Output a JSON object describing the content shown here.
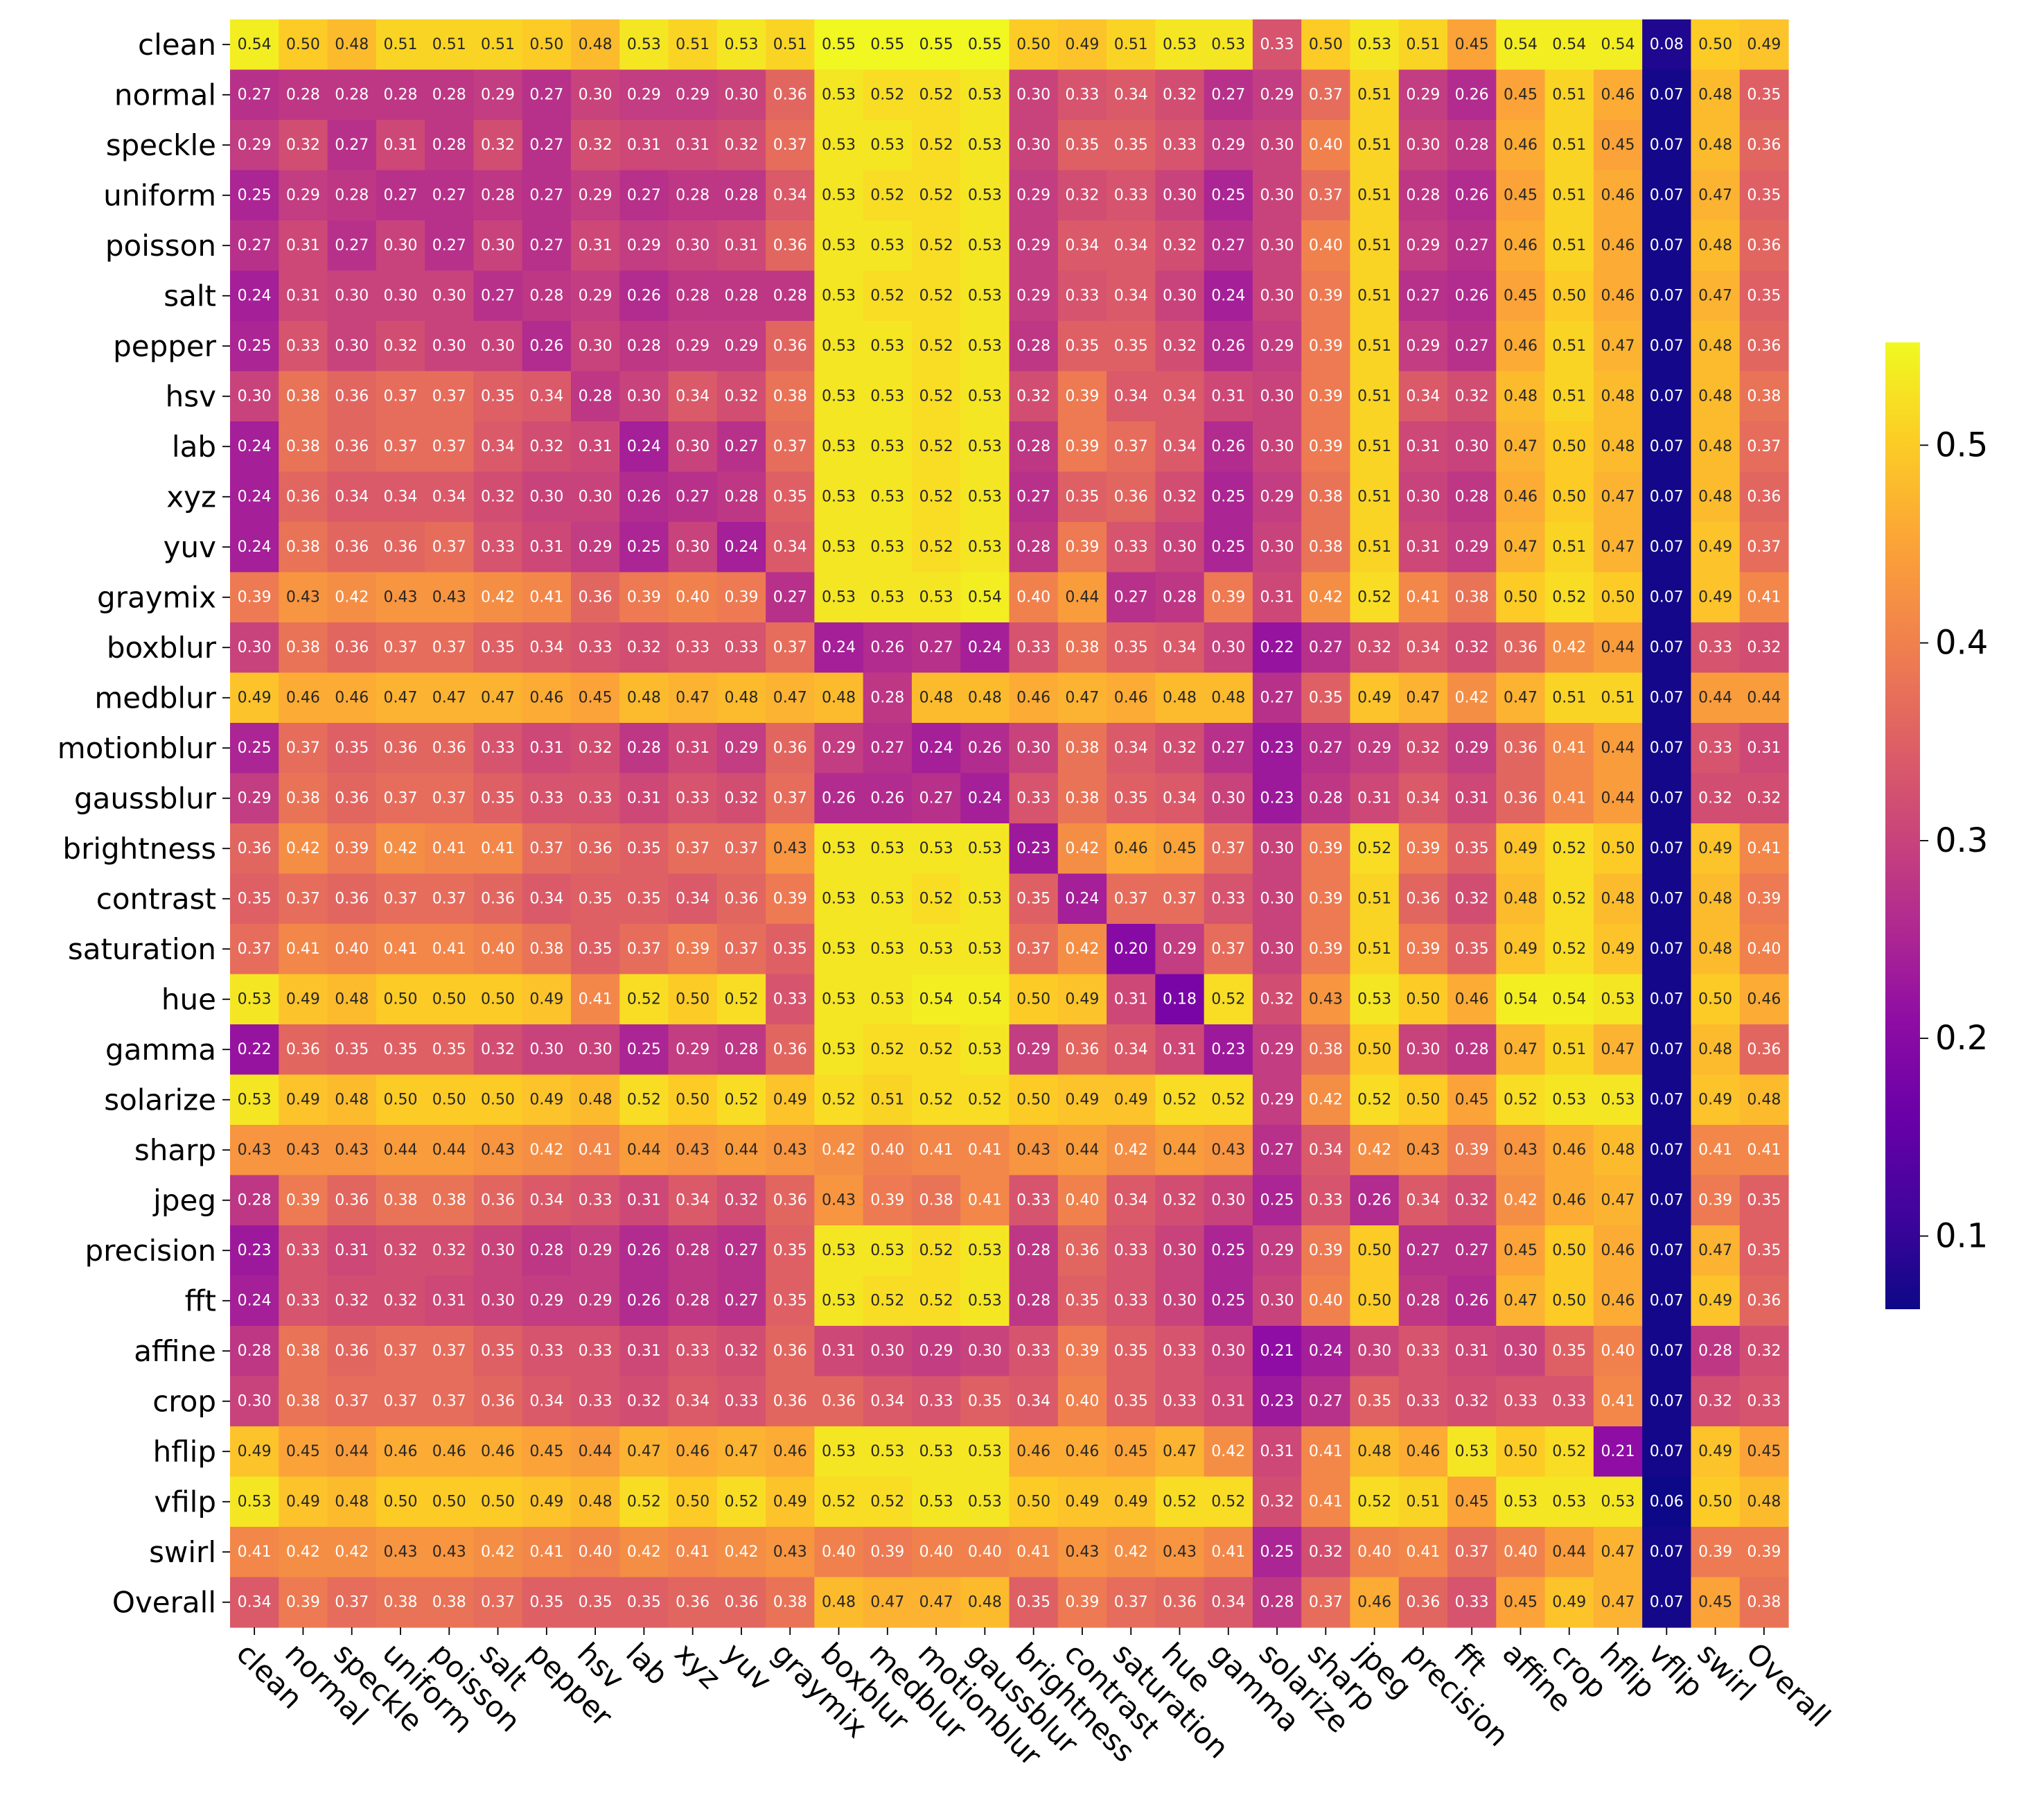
{
  "chart_data": {
    "type": "heatmap",
    "title": "",
    "xlabel": "",
    "ylabel": "",
    "colormap": "plasma",
    "color_range": [
      0.063,
      0.552
    ],
    "colorbar_ticks": [
      "0.1",
      "0.2",
      "0.3",
      "0.4",
      "0.5"
    ],
    "colorbar_position": "right",
    "annotated": true,
    "row_labels": [
      "clean",
      "normal",
      "speckle",
      "uniform",
      "poisson",
      "salt",
      "pepper",
      "hsv",
      "lab",
      "xyz",
      "yuv",
      "graymix",
      "boxblur",
      "medblur",
      "motionblur",
      "gaussblur",
      "brightness",
      "contrast",
      "saturation",
      "hue",
      "gamma",
      "solarize",
      "sharp",
      "jpeg",
      "precision",
      "fft",
      "affine",
      "crop",
      "hflip",
      "vfilp",
      "swirl",
      "Overall"
    ],
    "col_labels": [
      "clean",
      "normal",
      "speckle",
      "uniform",
      "poisson",
      "salt",
      "pepper",
      "hsv",
      "lab",
      "xyz",
      "yuv",
      "graymix",
      "boxblur",
      "medblur",
      "motionblur",
      "gaussblur",
      "brightness",
      "contrast",
      "saturation",
      "hue",
      "gamma",
      "solarize",
      "sharp",
      "jpeg",
      "precision",
      "fft",
      "affine",
      "crop",
      "hflip",
      "vflip",
      "swirl",
      "Overall"
    ],
    "values": [
      [
        0.54,
        0.5,
        0.48,
        0.51,
        0.51,
        0.51,
        0.5,
        0.48,
        0.53,
        0.51,
        0.53,
        0.51,
        0.55,
        0.55,
        0.55,
        0.55,
        0.5,
        0.49,
        0.51,
        0.53,
        0.53,
        0.33,
        0.5,
        0.53,
        0.51,
        0.45,
        0.54,
        0.54,
        0.54,
        0.08,
        0.5,
        0.49
      ],
      [
        0.27,
        0.28,
        0.28,
        0.28,
        0.28,
        0.29,
        0.27,
        0.3,
        0.29,
        0.29,
        0.3,
        0.36,
        0.53,
        0.52,
        0.52,
        0.53,
        0.3,
        0.33,
        0.34,
        0.32,
        0.27,
        0.29,
        0.37,
        0.51,
        0.29,
        0.26,
        0.45,
        0.51,
        0.46,
        0.07,
        0.48,
        0.35
      ],
      [
        0.29,
        0.32,
        0.27,
        0.31,
        0.28,
        0.32,
        0.27,
        0.32,
        0.31,
        0.31,
        0.32,
        0.37,
        0.53,
        0.53,
        0.52,
        0.53,
        0.3,
        0.35,
        0.35,
        0.33,
        0.29,
        0.3,
        0.4,
        0.51,
        0.3,
        0.28,
        0.46,
        0.51,
        0.45,
        0.07,
        0.48,
        0.36
      ],
      [
        0.25,
        0.29,
        0.28,
        0.27,
        0.27,
        0.28,
        0.27,
        0.29,
        0.27,
        0.28,
        0.28,
        0.34,
        0.53,
        0.52,
        0.52,
        0.53,
        0.29,
        0.32,
        0.33,
        0.3,
        0.25,
        0.3,
        0.37,
        0.51,
        0.28,
        0.26,
        0.45,
        0.51,
        0.46,
        0.07,
        0.47,
        0.35
      ],
      [
        0.27,
        0.31,
        0.27,
        0.3,
        0.27,
        0.3,
        0.27,
        0.31,
        0.29,
        0.3,
        0.31,
        0.36,
        0.53,
        0.53,
        0.52,
        0.53,
        0.29,
        0.34,
        0.34,
        0.32,
        0.27,
        0.3,
        0.4,
        0.51,
        0.29,
        0.27,
        0.46,
        0.51,
        0.46,
        0.07,
        0.48,
        0.36
      ],
      [
        0.24,
        0.31,
        0.3,
        0.3,
        0.3,
        0.27,
        0.28,
        0.29,
        0.26,
        0.28,
        0.28,
        0.28,
        0.53,
        0.52,
        0.52,
        0.53,
        0.29,
        0.33,
        0.34,
        0.3,
        0.24,
        0.3,
        0.39,
        0.51,
        0.27,
        0.26,
        0.45,
        0.5,
        0.46,
        0.07,
        0.47,
        0.35
      ],
      [
        0.25,
        0.33,
        0.3,
        0.32,
        0.3,
        0.3,
        0.26,
        0.3,
        0.28,
        0.29,
        0.29,
        0.36,
        0.53,
        0.53,
        0.52,
        0.53,
        0.28,
        0.35,
        0.35,
        0.32,
        0.26,
        0.29,
        0.39,
        0.51,
        0.29,
        0.27,
        0.46,
        0.51,
        0.47,
        0.07,
        0.48,
        0.36
      ],
      [
        0.3,
        0.38,
        0.36,
        0.37,
        0.37,
        0.35,
        0.34,
        0.28,
        0.3,
        0.34,
        0.32,
        0.38,
        0.53,
        0.53,
        0.52,
        0.53,
        0.32,
        0.39,
        0.34,
        0.34,
        0.31,
        0.3,
        0.39,
        0.51,
        0.34,
        0.32,
        0.48,
        0.51,
        0.48,
        0.07,
        0.48,
        0.38
      ],
      [
        0.24,
        0.38,
        0.36,
        0.37,
        0.37,
        0.34,
        0.32,
        0.31,
        0.24,
        0.3,
        0.27,
        0.37,
        0.53,
        0.53,
        0.52,
        0.53,
        0.28,
        0.39,
        0.37,
        0.34,
        0.26,
        0.3,
        0.39,
        0.51,
        0.31,
        0.3,
        0.47,
        0.5,
        0.48,
        0.07,
        0.48,
        0.37
      ],
      [
        0.24,
        0.36,
        0.34,
        0.34,
        0.34,
        0.32,
        0.3,
        0.3,
        0.26,
        0.27,
        0.28,
        0.35,
        0.53,
        0.53,
        0.52,
        0.53,
        0.27,
        0.35,
        0.36,
        0.32,
        0.25,
        0.29,
        0.38,
        0.51,
        0.3,
        0.28,
        0.46,
        0.5,
        0.47,
        0.07,
        0.48,
        0.36
      ],
      [
        0.24,
        0.38,
        0.36,
        0.36,
        0.37,
        0.33,
        0.31,
        0.29,
        0.25,
        0.3,
        0.24,
        0.34,
        0.53,
        0.53,
        0.52,
        0.53,
        0.28,
        0.39,
        0.33,
        0.3,
        0.25,
        0.3,
        0.38,
        0.51,
        0.31,
        0.29,
        0.47,
        0.51,
        0.47,
        0.07,
        0.49,
        0.37
      ],
      [
        0.39,
        0.43,
        0.42,
        0.43,
        0.43,
        0.42,
        0.41,
        0.36,
        0.39,
        0.4,
        0.39,
        0.27,
        0.53,
        0.53,
        0.53,
        0.54,
        0.4,
        0.44,
        0.27,
        0.28,
        0.39,
        0.31,
        0.42,
        0.52,
        0.41,
        0.38,
        0.5,
        0.52,
        0.5,
        0.07,
        0.49,
        0.41
      ],
      [
        0.3,
        0.38,
        0.36,
        0.37,
        0.37,
        0.35,
        0.34,
        0.33,
        0.32,
        0.33,
        0.33,
        0.37,
        0.24,
        0.26,
        0.27,
        0.24,
        0.33,
        0.38,
        0.35,
        0.34,
        0.3,
        0.22,
        0.27,
        0.32,
        0.34,
        0.32,
        0.36,
        0.42,
        0.44,
        0.07,
        0.33,
        0.32
      ],
      [
        0.49,
        0.46,
        0.46,
        0.47,
        0.47,
        0.47,
        0.46,
        0.45,
        0.48,
        0.47,
        0.48,
        0.47,
        0.48,
        0.28,
        0.48,
        0.48,
        0.46,
        0.47,
        0.46,
        0.48,
        0.48,
        0.27,
        0.35,
        0.49,
        0.47,
        0.42,
        0.47,
        0.51,
        0.51,
        0.07,
        0.44,
        0.44
      ],
      [
        0.25,
        0.37,
        0.35,
        0.36,
        0.36,
        0.33,
        0.31,
        0.32,
        0.28,
        0.31,
        0.29,
        0.36,
        0.29,
        0.27,
        0.24,
        0.26,
        0.3,
        0.38,
        0.34,
        0.32,
        0.27,
        0.23,
        0.27,
        0.29,
        0.32,
        0.29,
        0.36,
        0.41,
        0.44,
        0.07,
        0.33,
        0.31
      ],
      [
        0.29,
        0.38,
        0.36,
        0.37,
        0.37,
        0.35,
        0.33,
        0.33,
        0.31,
        0.33,
        0.32,
        0.37,
        0.26,
        0.26,
        0.27,
        0.24,
        0.33,
        0.38,
        0.35,
        0.34,
        0.3,
        0.23,
        0.28,
        0.31,
        0.34,
        0.31,
        0.36,
        0.41,
        0.44,
        0.07,
        0.32,
        0.32
      ],
      [
        0.36,
        0.42,
        0.39,
        0.42,
        0.41,
        0.41,
        0.37,
        0.36,
        0.35,
        0.37,
        0.37,
        0.43,
        0.53,
        0.53,
        0.53,
        0.53,
        0.23,
        0.42,
        0.46,
        0.45,
        0.37,
        0.3,
        0.39,
        0.52,
        0.39,
        0.35,
        0.49,
        0.52,
        0.5,
        0.07,
        0.49,
        0.41
      ],
      [
        0.35,
        0.37,
        0.36,
        0.37,
        0.37,
        0.36,
        0.34,
        0.35,
        0.35,
        0.34,
        0.36,
        0.39,
        0.53,
        0.53,
        0.52,
        0.53,
        0.35,
        0.24,
        0.37,
        0.37,
        0.33,
        0.3,
        0.39,
        0.51,
        0.36,
        0.32,
        0.48,
        0.52,
        0.48,
        0.07,
        0.48,
        0.39
      ],
      [
        0.37,
        0.41,
        0.4,
        0.41,
        0.41,
        0.4,
        0.38,
        0.35,
        0.37,
        0.39,
        0.37,
        0.35,
        0.53,
        0.53,
        0.53,
        0.53,
        0.37,
        0.42,
        0.2,
        0.29,
        0.37,
        0.3,
        0.39,
        0.51,
        0.39,
        0.35,
        0.49,
        0.52,
        0.49,
        0.07,
        0.48,
        0.4
      ],
      [
        0.53,
        0.49,
        0.48,
        0.5,
        0.5,
        0.5,
        0.49,
        0.41,
        0.52,
        0.5,
        0.52,
        0.33,
        0.53,
        0.53,
        0.54,
        0.54,
        0.5,
        0.49,
        0.31,
        0.18,
        0.52,
        0.32,
        0.43,
        0.53,
        0.5,
        0.46,
        0.54,
        0.54,
        0.53,
        0.07,
        0.5,
        0.46
      ],
      [
        0.22,
        0.36,
        0.35,
        0.35,
        0.35,
        0.32,
        0.3,
        0.3,
        0.25,
        0.29,
        0.28,
        0.36,
        0.53,
        0.52,
        0.52,
        0.53,
        0.29,
        0.36,
        0.34,
        0.31,
        0.23,
        0.29,
        0.38,
        0.5,
        0.3,
        0.28,
        0.47,
        0.51,
        0.47,
        0.07,
        0.48,
        0.36
      ],
      [
        0.53,
        0.49,
        0.48,
        0.5,
        0.5,
        0.5,
        0.49,
        0.48,
        0.52,
        0.5,
        0.52,
        0.49,
        0.52,
        0.51,
        0.52,
        0.52,
        0.5,
        0.49,
        0.49,
        0.52,
        0.52,
        0.29,
        0.42,
        0.52,
        0.5,
        0.45,
        0.52,
        0.53,
        0.53,
        0.07,
        0.49,
        0.48
      ],
      [
        0.43,
        0.43,
        0.43,
        0.44,
        0.44,
        0.43,
        0.42,
        0.41,
        0.44,
        0.43,
        0.44,
        0.43,
        0.42,
        0.4,
        0.41,
        0.41,
        0.43,
        0.44,
        0.42,
        0.44,
        0.43,
        0.27,
        0.34,
        0.42,
        0.43,
        0.39,
        0.43,
        0.46,
        0.48,
        0.07,
        0.41,
        0.41
      ],
      [
        0.28,
        0.39,
        0.36,
        0.38,
        0.38,
        0.36,
        0.34,
        0.33,
        0.31,
        0.34,
        0.32,
        0.36,
        0.43,
        0.39,
        0.38,
        0.41,
        0.33,
        0.4,
        0.34,
        0.32,
        0.3,
        0.25,
        0.33,
        0.26,
        0.34,
        0.32,
        0.42,
        0.46,
        0.47,
        0.07,
        0.39,
        0.35
      ],
      [
        0.23,
        0.33,
        0.31,
        0.32,
        0.32,
        0.3,
        0.28,
        0.29,
        0.26,
        0.28,
        0.27,
        0.35,
        0.53,
        0.53,
        0.52,
        0.53,
        0.28,
        0.36,
        0.33,
        0.3,
        0.25,
        0.29,
        0.39,
        0.5,
        0.27,
        0.27,
        0.45,
        0.5,
        0.46,
        0.07,
        0.47,
        0.35
      ],
      [
        0.24,
        0.33,
        0.32,
        0.32,
        0.31,
        0.3,
        0.29,
        0.29,
        0.26,
        0.28,
        0.27,
        0.35,
        0.53,
        0.52,
        0.52,
        0.53,
        0.28,
        0.35,
        0.33,
        0.3,
        0.25,
        0.3,
        0.4,
        0.5,
        0.28,
        0.26,
        0.47,
        0.5,
        0.46,
        0.07,
        0.49,
        0.36
      ],
      [
        0.28,
        0.38,
        0.36,
        0.37,
        0.37,
        0.35,
        0.33,
        0.33,
        0.31,
        0.33,
        0.32,
        0.36,
        0.31,
        0.3,
        0.29,
        0.3,
        0.33,
        0.39,
        0.35,
        0.33,
        0.3,
        0.21,
        0.24,
        0.3,
        0.33,
        0.31,
        0.3,
        0.35,
        0.4,
        0.07,
        0.28,
        0.32
      ],
      [
        0.3,
        0.38,
        0.37,
        0.37,
        0.37,
        0.36,
        0.34,
        0.33,
        0.32,
        0.34,
        0.33,
        0.36,
        0.36,
        0.34,
        0.33,
        0.35,
        0.34,
        0.4,
        0.35,
        0.33,
        0.31,
        0.23,
        0.27,
        0.35,
        0.33,
        0.32,
        0.33,
        0.33,
        0.41,
        0.07,
        0.32,
        0.33
      ],
      [
        0.49,
        0.45,
        0.44,
        0.46,
        0.46,
        0.46,
        0.45,
        0.44,
        0.47,
        0.46,
        0.47,
        0.46,
        0.53,
        0.53,
        0.53,
        0.53,
        0.46,
        0.46,
        0.45,
        0.47,
        0.42,
        0.31,
        0.41,
        0.48,
        0.46,
        0.53,
        0.5,
        0.52,
        0.21,
        0.07,
        0.49,
        0.45
      ],
      [
        0.53,
        0.49,
        0.48,
        0.5,
        0.5,
        0.5,
        0.49,
        0.48,
        0.52,
        0.5,
        0.52,
        0.49,
        0.52,
        0.52,
        0.53,
        0.53,
        0.5,
        0.49,
        0.49,
        0.52,
        0.52,
        0.32,
        0.41,
        0.52,
        0.51,
        0.45,
        0.53,
        0.53,
        0.53,
        0.06,
        0.5,
        0.48
      ],
      [
        0.41,
        0.42,
        0.42,
        0.43,
        0.43,
        0.42,
        0.41,
        0.4,
        0.42,
        0.41,
        0.42,
        0.43,
        0.4,
        0.39,
        0.4,
        0.4,
        0.41,
        0.43,
        0.42,
        0.43,
        0.41,
        0.25,
        0.32,
        0.4,
        0.41,
        0.37,
        0.4,
        0.44,
        0.47,
        0.07,
        0.39,
        0.39
      ],
      [
        0.34,
        0.39,
        0.37,
        0.38,
        0.38,
        0.37,
        0.35,
        0.35,
        0.35,
        0.36,
        0.36,
        0.38,
        0.48,
        0.47,
        0.47,
        0.48,
        0.35,
        0.39,
        0.37,
        0.36,
        0.34,
        0.28,
        0.37,
        0.46,
        0.36,
        0.33,
        0.45,
        0.49,
        0.47,
        0.07,
        0.45,
        0.38
      ]
    ]
  }
}
